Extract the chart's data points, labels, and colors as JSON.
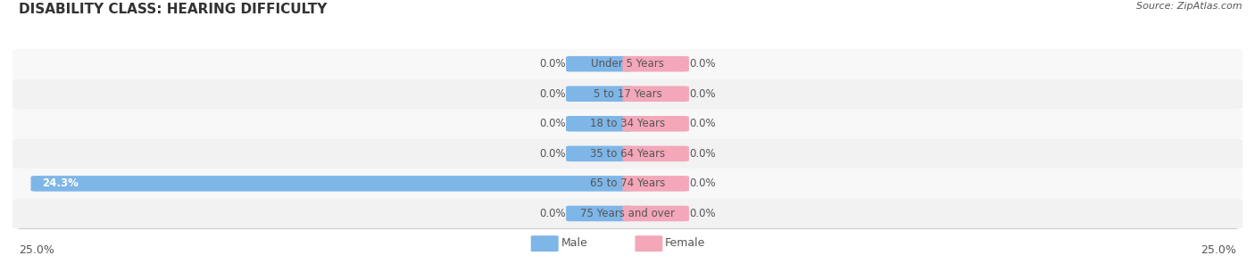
{
  "title": "DISABILITY CLASS: HEARING DIFFICULTY",
  "source": "Source: ZipAtlas.com",
  "categories": [
    "Under 5 Years",
    "5 to 17 Years",
    "18 to 34 Years",
    "35 to 64 Years",
    "65 to 74 Years",
    "75 Years and over"
  ],
  "male_values": [
    0.0,
    0.0,
    0.0,
    0.0,
    24.3,
    0.0
  ],
  "female_values": [
    0.0,
    0.0,
    0.0,
    0.0,
    0.0,
    0.0
  ],
  "male_color": "#7EB6E8",
  "female_color": "#F4A7B9",
  "male_label": "Male",
  "female_label": "Female",
  "xlim": 25.0,
  "title_fontsize": 11,
  "axis_fontsize": 9,
  "label_fontsize": 8.5,
  "value_fontsize": 8.5,
  "title_color": "#333333",
  "text_color": "#555555",
  "source_color": "#555555",
  "source_fontsize": 8,
  "male_bar_label_24": "24.3%",
  "zero_label": "0.0%",
  "tick_label_left": "25.0%",
  "tick_label_right": "25.0%"
}
